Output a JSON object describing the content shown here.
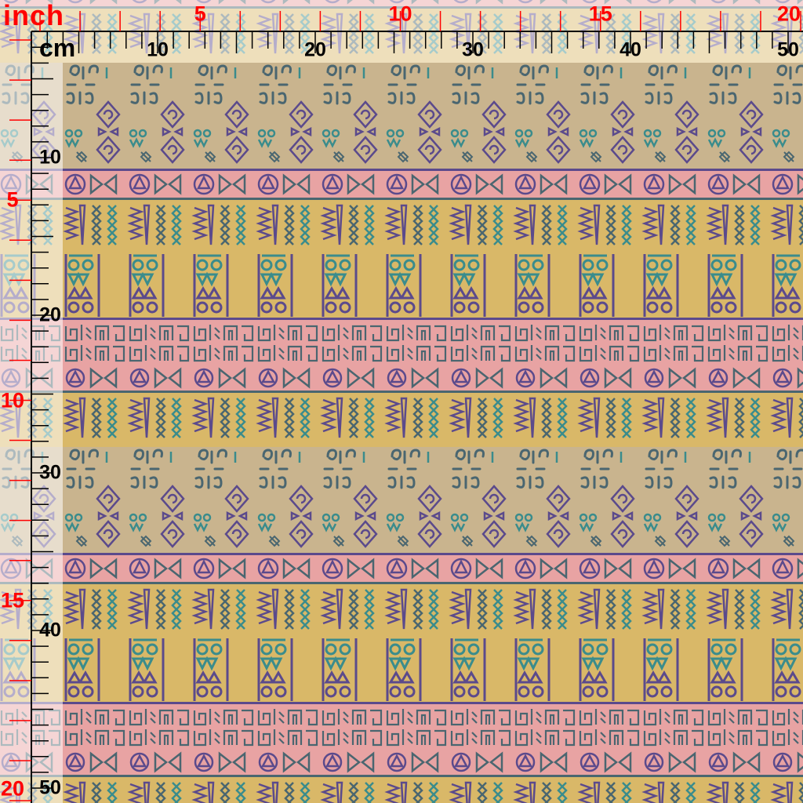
{
  "ruler": {
    "inch_unit": "inch",
    "cm_unit": "cm",
    "top_inch_labels": [
      "5",
      "10",
      "15",
      "20"
    ],
    "top_cm_labels": [
      "10",
      "20",
      "30",
      "40",
      "50"
    ],
    "left_inch_labels": [
      "5",
      "10",
      "15",
      "20"
    ],
    "left_cm_labels": [
      "10",
      "20",
      "30",
      "40",
      "50"
    ],
    "inch_color": "#ff0000",
    "cm_color": "#000000"
  },
  "fabric": {
    "colors": {
      "beige": "#c9b48e",
      "pink": "#e8a3a3",
      "mustard": "#d9b868",
      "purple": "#5b4a8c",
      "teal": "#3a8c8c",
      "slate": "#4a6670"
    }
  }
}
